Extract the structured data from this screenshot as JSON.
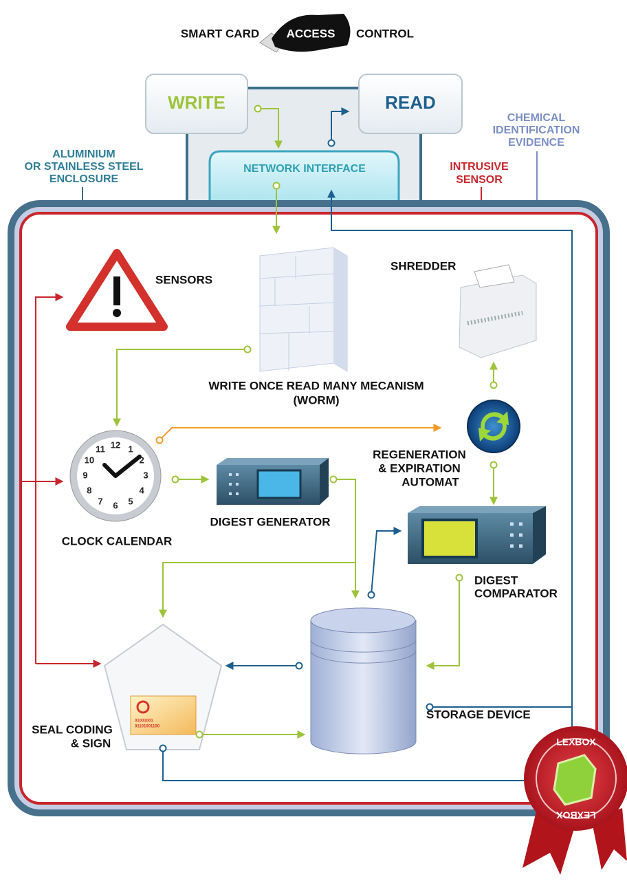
{
  "access": {
    "left": "SMART CARD",
    "badge": "ACCESS",
    "right": "CONTROL"
  },
  "boxes": {
    "write": "WRITE",
    "read": "READ",
    "network": "NETWORK INTERFACE"
  },
  "callouts": {
    "enclosure": [
      "ALUMINIUM",
      "OR STAINLESS STEEL",
      "ENCLOSURE"
    ],
    "chemical": [
      "CHEMICAL",
      "IDENTIFICATION",
      "EVIDENCE"
    ],
    "intrusive": [
      "INTRUSIVE",
      "SENSOR"
    ]
  },
  "components": {
    "sensors": "SENSORS",
    "shredder": "SHREDDER",
    "worm": [
      "WRITE ONCE READ MANY MECANISM",
      "(WORM)"
    ],
    "regeneration": [
      "REGENERATION",
      "& EXPIRATION",
      "AUTOMAT"
    ],
    "clock": "CLOCK CALENDAR",
    "digest_generator": "DIGEST GENERATOR",
    "digest_comparator": [
      "DIGEST",
      "COMPARATOR"
    ],
    "storage": "STORAGE DEVICE",
    "seal": [
      "SEAL CODING",
      "& SIGN"
    ]
  },
  "clock_numbers": [
    "12",
    "1",
    "2",
    "3",
    "4",
    "5",
    "6",
    "7",
    "8",
    "9",
    "10",
    "11"
  ],
  "card_code": [
    "01001001",
    "01101001100"
  ],
  "badge": {
    "top": "LEXBOX",
    "bottom": "LEXBOX"
  }
}
